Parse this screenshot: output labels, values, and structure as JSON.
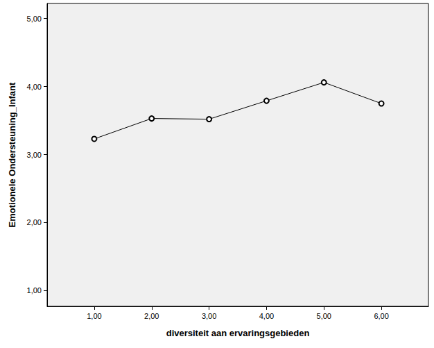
{
  "chart_data": {
    "type": "line",
    "x_label": "diversiteit aan ervaringsgebieden",
    "y_label": "Emotionele Ondersteuning_Infant",
    "x": [
      1,
      2,
      3,
      4,
      5,
      6
    ],
    "values": [
      3.23,
      3.53,
      3.52,
      3.79,
      4.06,
      3.75
    ],
    "color": "#000000",
    "marker": "circle-open",
    "line_style": "solid",
    "xlim": [
      0.18,
      6.82
    ],
    "xticks": [
      {
        "value": 1,
        "label": "1,00"
      },
      {
        "value": 2,
        "label": "2,00"
      },
      {
        "value": 3,
        "label": "3,00"
      },
      {
        "value": 4,
        "label": "4,00"
      },
      {
        "value": 5,
        "label": "5,00"
      },
      {
        "value": 6,
        "label": "6,00"
      }
    ],
    "ylim": [
      0.77,
      5.22
    ],
    "yticks": [
      {
        "value": 1,
        "label": "1,00"
      },
      {
        "value": 2,
        "label": "2,00"
      },
      {
        "value": 3,
        "label": "3,00"
      },
      {
        "value": 4,
        "label": "4,00"
      },
      {
        "value": 5,
        "label": "5,00"
      }
    ],
    "grid": false
  }
}
